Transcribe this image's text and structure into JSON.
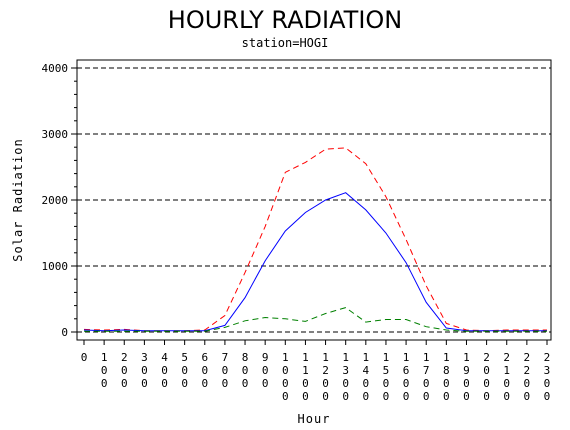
{
  "title": "HOURLY RADIATION",
  "subtitle": "station=HOGI",
  "chart_data": {
    "type": "line",
    "xlabel": "Hour",
    "ylabel": "Solar Radiation",
    "ylim": [
      0,
      4000
    ],
    "yticks": [
      "0",
      "1000",
      "2000",
      "3000",
      "4000"
    ],
    "grid": "horizontal dashed",
    "x": [
      0,
      100,
      200,
      300,
      400,
      500,
      600,
      700,
      800,
      900,
      1000,
      1100,
      1200,
      1300,
      1400,
      1500,
      1600,
      1700,
      1800,
      1900,
      2000,
      2100,
      2200,
      2300
    ],
    "x_tick_labels": [
      "0",
      "100",
      "200",
      "300",
      "400",
      "500",
      "600",
      "700",
      "800",
      "900",
      "1000",
      "1100",
      "1200",
      "1300",
      "1400",
      "1500",
      "1600",
      "1700",
      "1800",
      "1900",
      "2000",
      "2100",
      "2200",
      "2300"
    ],
    "series": [
      {
        "color": "#ff0000",
        "dash": "dashed",
        "values": [
          40,
          30,
          40,
          20,
          20,
          20,
          30,
          250,
          900,
          1600,
          2420,
          2570,
          2770,
          2790,
          2550,
          2050,
          1400,
          700,
          130,
          30,
          20,
          30,
          30,
          30
        ]
      },
      {
        "color": "#0000ff",
        "dash": "solid",
        "values": [
          30,
          20,
          30,
          20,
          20,
          20,
          20,
          100,
          520,
          1080,
          1530,
          1810,
          2000,
          2110,
          1850,
          1500,
          1050,
          450,
          60,
          20,
          20,
          20,
          20,
          20
        ]
      },
      {
        "color": "#008000",
        "dash": "dashed",
        "values": [
          10,
          10,
          10,
          10,
          10,
          10,
          10,
          70,
          170,
          220,
          200,
          160,
          280,
          370,
          150,
          190,
          190,
          80,
          30,
          10,
          10,
          10,
          10,
          10
        ]
      }
    ]
  }
}
